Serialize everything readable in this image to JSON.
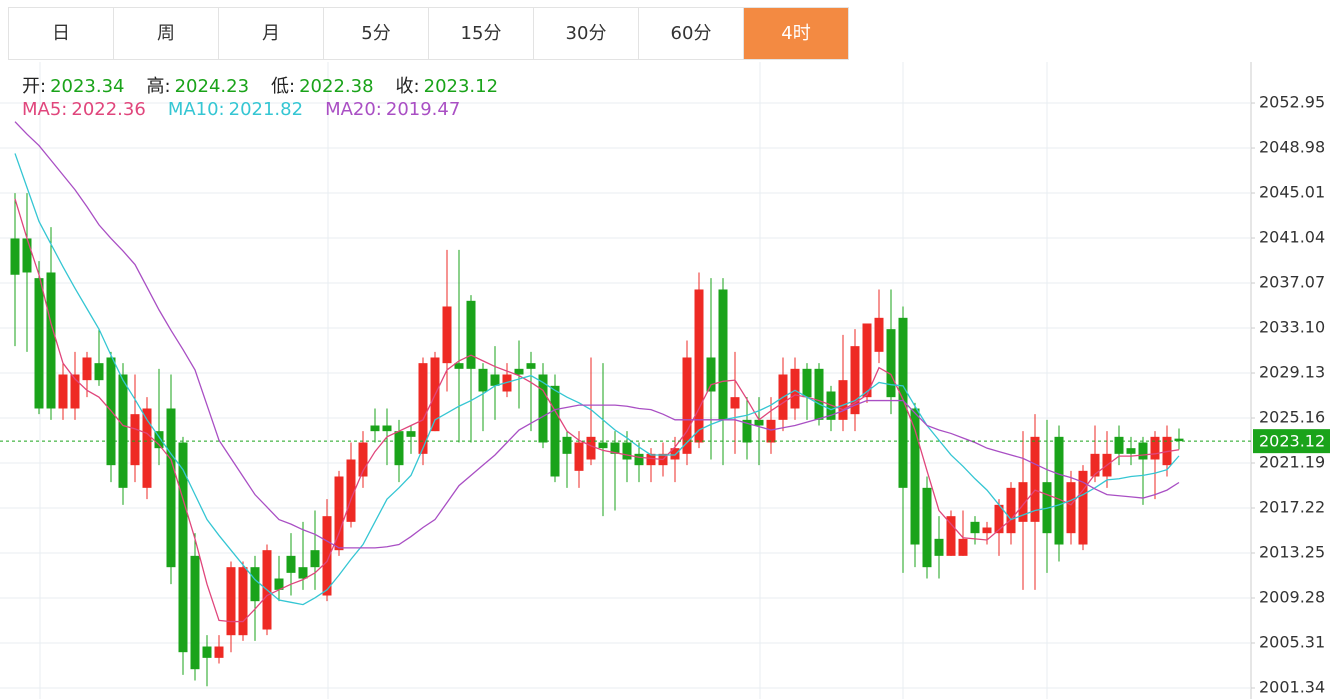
{
  "tabs": [
    "日",
    "周",
    "月",
    "5分",
    "15分",
    "30分",
    "60分",
    "4时"
  ],
  "active_tab": 7,
  "info": [
    {
      "label": "开:",
      "value": 2023.34
    },
    {
      "label": "高:",
      "value": 2024.23
    },
    {
      "label": "低:",
      "value": 2022.38
    },
    {
      "label": "收:",
      "value": 2023.12
    }
  ],
  "chart_data": {
    "type": "candlestick",
    "ylim": [
      2000.37,
      2056.57
    ],
    "yticks": [
      2052.95,
      2048.98,
      2045.01,
      2041.04,
      2037.07,
      {
        "value": 2033.1,
        "label": "2033.10"
      },
      2029.13,
      2025.16,
      2021.19,
      2017.22,
      2013.25,
      2009.28,
      2005.31,
      2001.34
    ],
    "grid": true,
    "up_color": "#ee2a24",
    "down_color": "#1aa31a",
    "last_price_color": "#1aa31a",
    "categories": [
      null,
      null,
      null,
      null,
      null,
      null,
      null,
      null,
      null,
      null,
      null,
      null,
      null,
      null,
      null,
      null,
      null,
      null,
      null,
      null,
      null,
      null,
      null,
      null,
      null,
      null,
      null,
      null,
      null,
      null,
      null,
      null,
      null,
      null,
      null,
      null,
      null,
      null,
      null,
      null,
      null,
      null,
      null,
      null,
      null,
      null,
      null,
      null,
      null,
      null,
      null,
      null,
      null,
      null,
      null,
      null,
      null,
      null,
      null,
      null,
      null,
      null,
      null,
      null,
      null,
      null,
      null,
      null,
      null,
      null,
      null,
      null,
      null,
      null,
      null,
      null,
      null,
      null,
      null,
      null,
      null,
      null,
      null,
      null,
      null,
      null,
      null,
      null,
      null,
      null,
      null,
      null,
      null,
      null,
      null,
      null,
      null,
      null
    ],
    "open": [
      2041,
      2041,
      2037.5,
      2038,
      2026,
      2026,
      2028.5,
      2030,
      2030.5,
      2029,
      2021,
      2019,
      2024,
      2026,
      2023,
      2013,
      2005,
      2004,
      2006,
      2006,
      2012,
      2006.5,
      2011,
      2013,
      2012,
      2013.5,
      2009.5,
      2013.5,
      2016,
      2020,
      2024.5,
      2024.5,
      2024,
      2024,
      2022,
      2024,
      2030,
      2030,
      2035.5,
      2029.5,
      2029,
      2027.5,
      2029.5,
      2030,
      2029,
      2028,
      2023.5,
      2020.5,
      2021.5,
      2023,
      2023,
      2023,
      2022,
      2021,
      2021,
      2021.5,
      2022,
      2023,
      2030.5,
      2036.5,
      2026,
      2025,
      2025,
      2023,
      2025,
      2026,
      2029.5,
      2029.5,
      2027.5,
      2025,
      2025.5,
      2027,
      2031,
      2033,
      2034,
      2026,
      2019,
      2014.5,
      2013,
      2013,
      2016,
      2015,
      2015,
      2015,
      2016,
      2016,
      2019.5,
      2023.5,
      2015,
      2014,
      2020,
      2020,
      2023.5,
      2022.5,
      2023,
      2021.5,
      2021,
      2023.34
    ],
    "high": [
      2045,
      2045,
      2039,
      2042,
      2030,
      2031,
      2031,
      2033,
      2031,
      2030,
      2029,
      2027,
      2029.5,
      2029,
      2023.5,
      2015,
      2006,
      2006,
      2012.5,
      2012.5,
      2013,
      2014,
      2013,
      2015,
      2016,
      2017,
      2018,
      2020.5,
      2023,
      2024,
      2026,
      2026,
      2025,
      2024.5,
      2030.5,
      2031,
      2040,
      2040,
      2036,
      2030,
      2031.5,
      2030,
      2032,
      2031,
      2030,
      2029,
      2024,
      2024,
      2030.5,
      2030,
      2024,
      2024,
      2023,
      2022.5,
      2023,
      2023.5,
      2032,
      2038,
      2037.5,
      2037.5,
      2031,
      2027,
      2027,
      2027,
      2030.5,
      2030.5,
      2030,
      2030,
      2028,
      2032.5,
      2033,
      2033.5,
      2036.5,
      2036.5,
      2035,
      2026.5,
      2020,
      2016.5,
      2017,
      2017,
      2016.5,
      2016,
      2018,
      2019.5,
      2024,
      2025.5,
      2025,
      2024.5,
      2020.5,
      2021,
      2024.5,
      2024,
      2024.5,
      2023.5,
      2023.5,
      2024,
      2024.5,
      2024.23
    ],
    "low": [
      2031.5,
      2031,
      2025.5,
      2025,
      2025,
      2025,
      2027,
      2028,
      2019.5,
      2017.5,
      2019.5,
      2018,
      2021,
      2010.5,
      2002.5,
      2002,
      2001.5,
      2003.5,
      2004.5,
      2005.5,
      2005.5,
      2006,
      2009,
      2009.5,
      2010,
      2010,
      2009,
      2013,
      2015.5,
      2019,
      2023,
      2021,
      2019.5,
      2022,
      2021,
      2024,
      2027.5,
      2023,
      2023,
      2024,
      2025,
      2027,
      2026,
      2024,
      2022.5,
      2019.5,
      2019,
      2019,
      2021,
      2016.5,
      2017,
      2019.5,
      2019.5,
      2019.5,
      2020,
      2019.5,
      2021,
      2022.5,
      2021.5,
      2021,
      2022,
      2021.5,
      2021,
      2022,
      2024,
      2025,
      2025,
      2024.5,
      2024,
      2024,
      2024,
      2026.5,
      2030,
      2025.5,
      2011.5,
      2012,
      2011,
      2011,
      2013,
      2013,
      2014,
      2014,
      2013,
      2014,
      2010,
      2010,
      2011.5,
      2012.5,
      2014,
      2013.5,
      2019.5,
      2019,
      2021,
      2021,
      2017.5,
      2018,
      2020,
      2022.38
    ],
    "close": [
      2037.8,
      2038,
      2026,
      2026,
      2029,
      2029,
      2030.5,
      2028.5,
      2021,
      2019,
      2025.5,
      2026,
      2022.5,
      2012,
      2004.5,
      2003,
      2004,
      2005,
      2012,
      2012,
      2009,
      2013.5,
      2010,
      2011.5,
      2011,
      2012,
      2016.5,
      2020,
      2021.5,
      2023,
      2024,
      2024,
      2021,
      2023.5,
      2030,
      2030.5,
      2035,
      2029.5,
      2029.5,
      2027.5,
      2028,
      2029,
      2029,
      2029.5,
      2023,
      2020,
      2022,
      2023,
      2023.5,
      2022.5,
      2022,
      2021.5,
      2021,
      2022,
      2022,
      2022.5,
      2030.5,
      2036.5,
      2027.5,
      2025,
      2027,
      2023,
      2024.5,
      2025,
      2029,
      2029.5,
      2027,
      2025,
      2025,
      2028.5,
      2031.5,
      2033.5,
      2034,
      2027,
      2019,
      2014,
      2012,
      2013,
      2016.5,
      2014.5,
      2015,
      2015.5,
      2017.5,
      2019,
      2019.5,
      2023.5,
      2015,
      2014,
      2019.5,
      2020.5,
      2022,
      2022,
      2022,
      2022,
      2021.5,
      2023.5,
      2023.5,
      2023.12
    ],
    "series": [
      {
        "name": "MA5:",
        "color": "#e0467c",
        "values": [
          2044.5,
          2041,
          2037.8,
          2033.5,
          2030,
          2028.6,
          2027.6,
          2027,
          2025.8,
          2024.5,
          2024.2,
          2023.8,
          2022.8,
          2021.5,
          2018,
          2014.5,
          2010.5,
          2007.3,
          2007.2,
          2007.2,
          2008.3,
          2009.5,
          2010,
          2010.5,
          2010.9,
          2011.5,
          2012.5,
          2015,
          2018,
          2020.5,
          2022.2,
          2023.5,
          2024,
          2024.5,
          2025,
          2027.2,
          2029.4,
          2030.2,
          2030.7,
          2030.2,
          2029.7,
          2029.3,
          2028.9,
          2028.3,
          2027.6,
          2025.8,
          2024,
          2023.2,
          2022.7,
          2022.3,
          2022.1,
          2021.9,
          2021.7,
          2021.6,
          2021.5,
          2022.6,
          2024,
          2026,
          2028.1,
          2028.4,
          2028.5,
          2026.8,
          2025,
          2025.8,
          2026.5,
          2027.2,
          2027,
          2026.7,
          2026.3,
          2025.9,
          2026.5,
          2027.2,
          2029.6,
          2029,
          2026.8,
          2024.1,
          2020.5,
          2017,
          2015.8,
          2014.6,
          2014.5,
          2014.4,
          2015.3,
          2016.2,
          2017.5,
          2018.8,
          2018.4,
          2018,
          2017.5,
          2018.8,
          2020.2,
          2021,
          2021.8,
          2021.8,
          2021.9,
          2022,
          2022.2,
          2022.36
        ]
      },
      {
        "name": "MA10:",
        "color": "#35c6d3",
        "values": [
          2048.5,
          2045.5,
          2042.5,
          2040.5,
          2038.5,
          2036.6,
          2034.8,
          2033,
          2030.7,
          2028.5,
          2026.8,
          2025,
          2023.5,
          2022,
          2020.6,
          2018.4,
          2016.2,
          2014.8,
          2013.5,
          2012.2,
          2010.9,
          2010,
          2009.1,
          2008.9,
          2008.7,
          2009.3,
          2010,
          2011.3,
          2012.7,
          2014,
          2016,
          2018,
          2019,
          2020.1,
          2022.5,
          2025,
          2025.6,
          2026.2,
          2026.7,
          2027.3,
          2028,
          2028.3,
          2028.6,
          2028.9,
          2028.3,
          2027.6,
          2027,
          2026.5,
          2025.9,
          2025,
          2024.1,
          2023.4,
          2022.6,
          2021.9,
          2021.9,
          2021.9,
          2023,
          2024.1,
          2024.6,
          2025,
          2025.2,
          2025.4,
          2025.8,
          2026.3,
          2027,
          2027.6,
          2027,
          2026.4,
          2025.9,
          2026.3,
          2026.7,
          2027.5,
          2028.3,
          2028.1,
          2028,
          2026.2,
          2024.5,
          2023.2,
          2021.9,
          2020.9,
          2019.8,
          2018.8,
          2017.5,
          2016.2,
          2016.6,
          2017,
          2017.2,
          2017.5,
          2017.9,
          2018.4,
          2019,
          2019.7,
          2019.8,
          2020,
          2020.1,
          2020.3,
          2020.6,
          2021.82
        ]
      },
      {
        "name": "MA20:",
        "color": "#a94fc4",
        "values": [
          2051.3,
          2050.2,
          2049.2,
          2047.9,
          2046.6,
          2045.3,
          2043.8,
          2042.2,
          2041,
          2039.9,
          2038.7,
          2036.7,
          2034.7,
          2032.9,
          2031.2,
          2029.4,
          2026.3,
          2023.2,
          2021.6,
          2020,
          2018.4,
          2017.3,
          2016.2,
          2015.8,
          2015.3,
          2014.9,
          2014.3,
          2013.7,
          2013.7,
          2013.7,
          2013.7,
          2013.8,
          2014,
          2014.7,
          2015.5,
          2016.2,
          2017.7,
          2019.2,
          2020.1,
          2021,
          2021.9,
          2023,
          2024.1,
          2024.7,
          2025.3,
          2025.9,
          2026.1,
          2026.3,
          2026.3,
          2026.3,
          2026.3,
          2026.2,
          2026,
          2025.9,
          2025.5,
          2025,
          2025,
          2025,
          2025,
          2025,
          2025,
          2024.7,
          2024.4,
          2024.1,
          2024.3,
          2024.5,
          2024.8,
          2025.1,
          2025.4,
          2025.8,
          2026.3,
          2026.7,
          2026.7,
          2026.7,
          2026.7,
          2025.6,
          2024.5,
          2024.1,
          2023.8,
          2023.4,
          2023,
          2022.5,
          2022.2,
          2021.9,
          2021.6,
          2021.1,
          2020.6,
          2020.2,
          2019.9,
          2019.5,
          2018.9,
          2018.4,
          2018.3,
          2018.2,
          2018.1,
          2018.4,
          2018.8,
          2019.47
        ]
      }
    ]
  }
}
